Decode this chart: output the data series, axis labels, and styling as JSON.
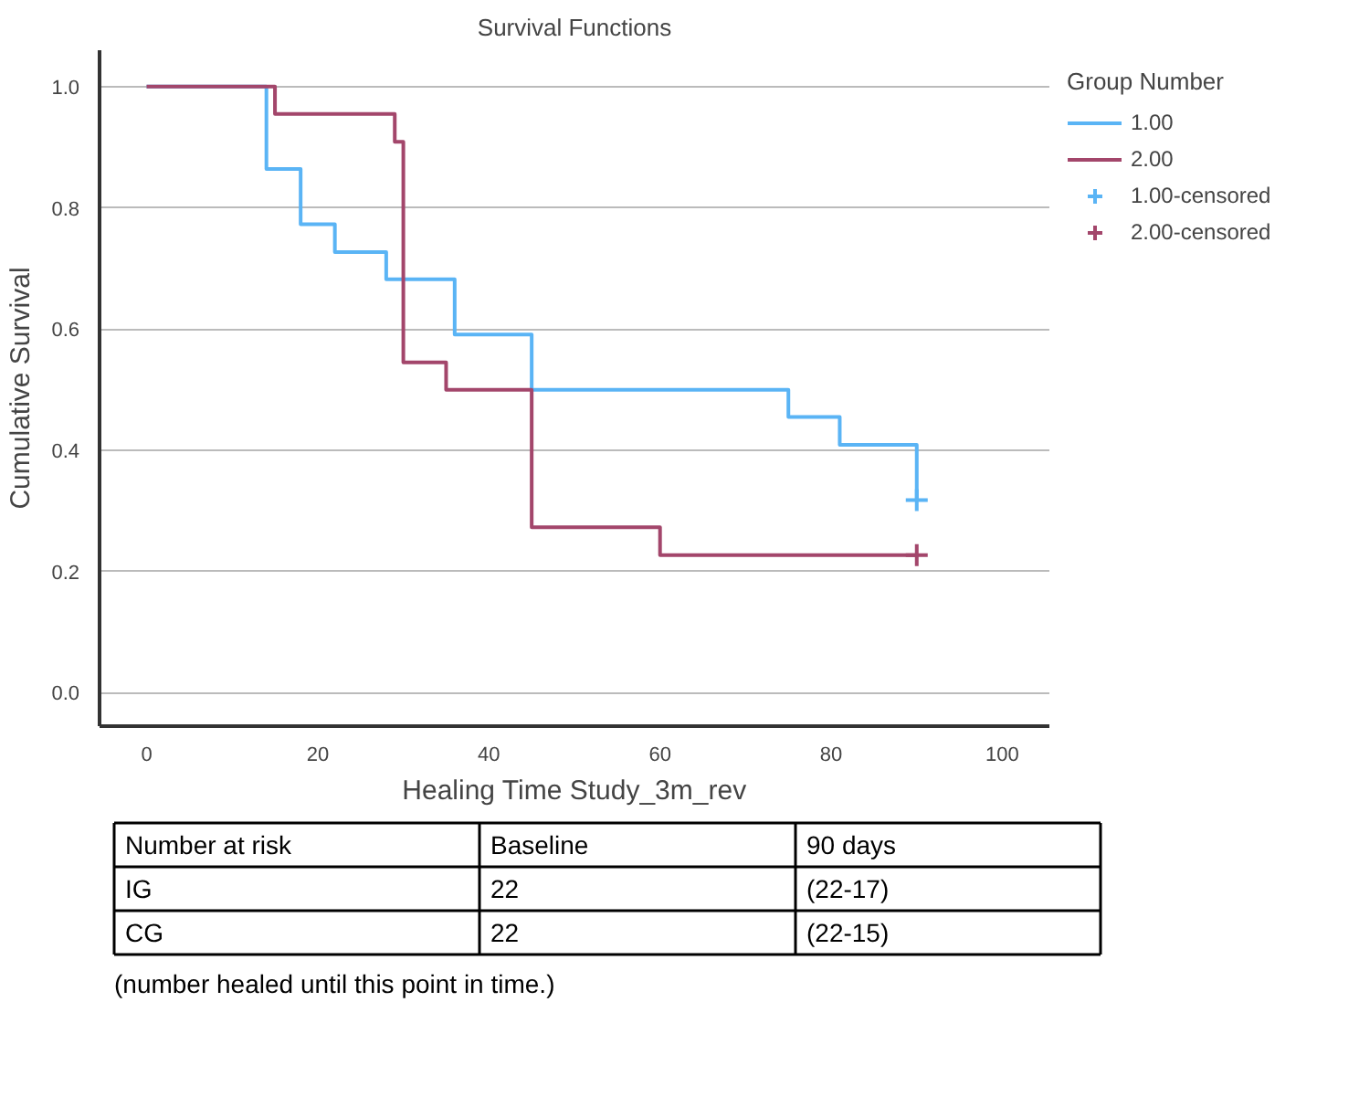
{
  "chart_data": {
    "type": "step",
    "title": "Survival Functions",
    "xlabel": "Healing Time Study_3m_rev",
    "ylabel": "Cumulative Survival",
    "legend_title": "Group Number",
    "series": [
      {
        "name": "1.00",
        "color": "#5ab4f5",
        "x": [
          0,
          14,
          18,
          22,
          28,
          36,
          45,
          75,
          81,
          90
        ],
        "values": [
          1.0,
          0.864,
          0.773,
          0.727,
          0.682,
          0.591,
          0.5,
          0.455,
          0.409,
          0.318
        ]
      },
      {
        "name": "2.00",
        "color": "#a3466b",
        "x": [
          0,
          15,
          29,
          30,
          35,
          45,
          60,
          90
        ],
        "values": [
          1.0,
          0.955,
          0.909,
          0.545,
          0.5,
          0.273,
          0.227,
          0.227
        ]
      },
      {
        "name": "1.00-censored",
        "type": "scatter",
        "marker": "cross",
        "color": "#5ab4f5",
        "x": [
          90
        ],
        "values": [
          0.318
        ]
      },
      {
        "name": "2.00-censored",
        "type": "scatter",
        "marker": "cross",
        "color": "#a3466b",
        "x": [
          90
        ],
        "values": [
          0.227
        ]
      }
    ],
    "xlim": [
      -5.5,
      105.5
    ],
    "ylim": [
      -0.055,
      1.06
    ],
    "xticks": [
      0,
      20,
      40,
      60,
      80,
      100
    ],
    "yticks": [
      {
        "value": 0,
        "label": "0.0"
      },
      {
        "value": 0.2,
        "label": "0.2"
      },
      {
        "value": 0.4,
        "label": "0.4"
      },
      {
        "value": 0.6,
        "label": "0.6"
      },
      {
        "value": 0.8,
        "label": "0.8"
      },
      {
        "value": 1,
        "label": "1.0"
      }
    ],
    "grid": "y",
    "legend": "right",
    "annotations": [
      "Number at risk",
      "Baseline",
      "90 days",
      "IG",
      "22",
      "(22-17)",
      "CG",
      "22",
      "(22-15)",
      "(number healed until this point in time.)"
    ]
  }
}
